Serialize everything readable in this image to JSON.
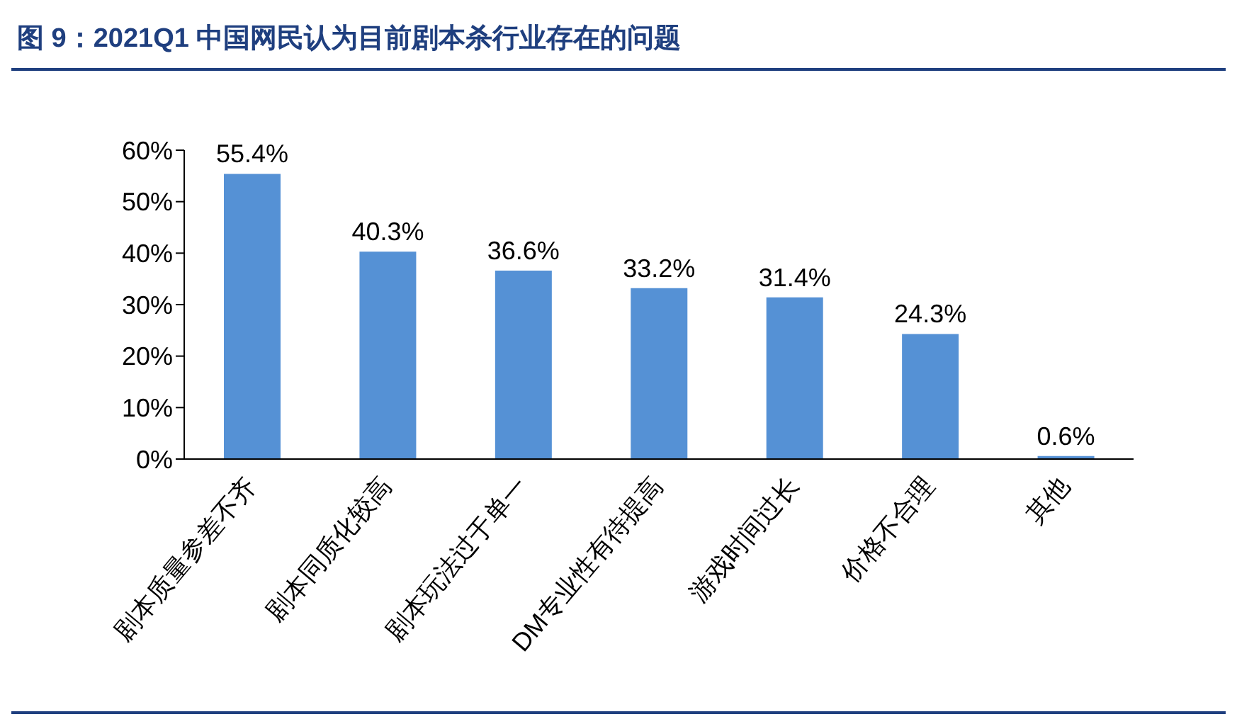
{
  "chart_data": {
    "type": "bar",
    "title": "图 9：2021Q1 中国网民认为目前剧本杀行业存在的问题",
    "categories": [
      "剧本质量参差不齐",
      "剧本同质化较高",
      "剧本玩法过于单一",
      "DM专业性有待提高",
      "游戏时间过长",
      "价格不合理",
      "其他"
    ],
    "values": [
      55.4,
      40.3,
      36.6,
      33.2,
      31.4,
      24.3,
      0.6
    ],
    "value_labels": [
      "55.4%",
      "40.3%",
      "36.6%",
      "33.2%",
      "31.4%",
      "24.3%",
      "0.6%"
    ],
    "color": "#5591d5",
    "ylim": [
      0,
      60
    ],
    "yticks": [
      {
        "value": 0,
        "label": "0%"
      },
      {
        "value": 10,
        "label": "10%"
      },
      {
        "value": 20,
        "label": "20%"
      },
      {
        "value": 30,
        "label": "30%"
      },
      {
        "value": 40,
        "label": "40%"
      },
      {
        "value": 50,
        "label": "50%"
      },
      {
        "value": 60,
        "label": "60%"
      }
    ],
    "grid": false,
    "legend": false
  }
}
